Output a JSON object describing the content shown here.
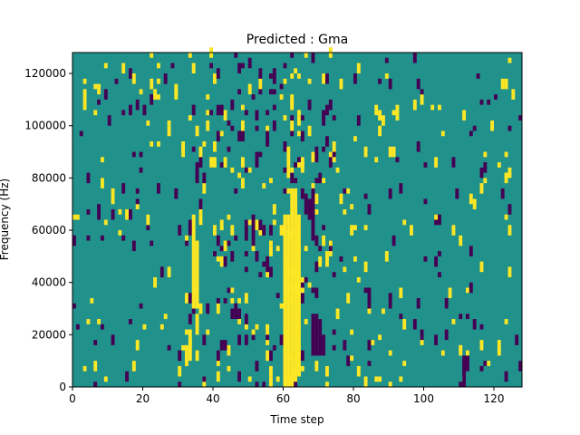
{
  "chart_data": {
    "type": "heatmap",
    "title": "Predicted : Gma",
    "xlabel": "Time step",
    "ylabel": "Frequency (Hz)",
    "xlim": [
      0,
      128
    ],
    "ylim": [
      0,
      128000
    ],
    "xticks": [
      0,
      20,
      40,
      60,
      80,
      100,
      120
    ],
    "xtick_labels": [
      "0",
      "20",
      "40",
      "60",
      "80",
      "100",
      "120"
    ],
    "yticks": [
      0,
      20000,
      40000,
      60000,
      80000,
      100000,
      120000
    ],
    "ytick_labels": [
      "0",
      "20000",
      "40000",
      "60000",
      "80000",
      "100000",
      "120000"
    ],
    "colors": {
      "background": "#21918c",
      "high": "#fde725",
      "low": "#440154"
    },
    "n_time_steps": 128,
    "n_freq_bins": 64,
    "freq_bin_width_hz": 2000,
    "seed": 7,
    "dense_band": {
      "x_from": 59,
      "x_to": 65
    },
    "cells_high": [
      {
        "t": 60,
        "f0": 0,
        "f1": 60000
      },
      {
        "t": 61,
        "f0": 0,
        "f1": 66000
      },
      {
        "t": 62,
        "f0": 0,
        "f1": 76000
      },
      {
        "t": 63,
        "f0": 4000,
        "f1": 76000
      },
      {
        "t": 64,
        "f0": 4000,
        "f1": 66000
      },
      {
        "t": 61,
        "f0": 84000,
        "f1": 92000
      },
      {
        "t": 32,
        "f0": 8000,
        "f1": 16000
      },
      {
        "t": 33,
        "f0": 10000,
        "f1": 22000
      },
      {
        "t": 34,
        "f0": 30000,
        "f1": 66000
      },
      {
        "t": 35,
        "f0": 30000,
        "f1": 56000
      },
      {
        "t": 35,
        "f0": 20000,
        "f1": 28000
      },
      {
        "t": 39,
        "f0": 84000,
        "f1": 88000
      },
      {
        "t": 40,
        "f0": 84000,
        "f1": 88000
      }
    ],
    "cells_low": [
      {
        "t": 68,
        "f0": 12000,
        "f1": 28000
      },
      {
        "t": 69,
        "f0": 12000,
        "f1": 28000
      },
      {
        "t": 70,
        "f0": 12000,
        "f1": 20000
      },
      {
        "t": 71,
        "f0": 12000,
        "f1": 20000
      },
      {
        "t": 68,
        "f0": 56000,
        "f1": 76000
      },
      {
        "t": 67,
        "f0": 64000,
        "f1": 72000
      },
      {
        "t": 45,
        "f0": 26000,
        "f1": 30000
      },
      {
        "t": 46,
        "f0": 26000,
        "f1": 30000
      },
      {
        "t": 47,
        "f0": 26000,
        "f1": 30000
      },
      {
        "t": 41,
        "f0": 104000,
        "f1": 108000
      },
      {
        "t": 42,
        "f0": 104000,
        "f1": 108000
      },
      {
        "t": 111,
        "f0": 0,
        "f1": 12000
      },
      {
        "t": 112,
        "f0": 6000,
        "f1": 12000
      }
    ]
  }
}
